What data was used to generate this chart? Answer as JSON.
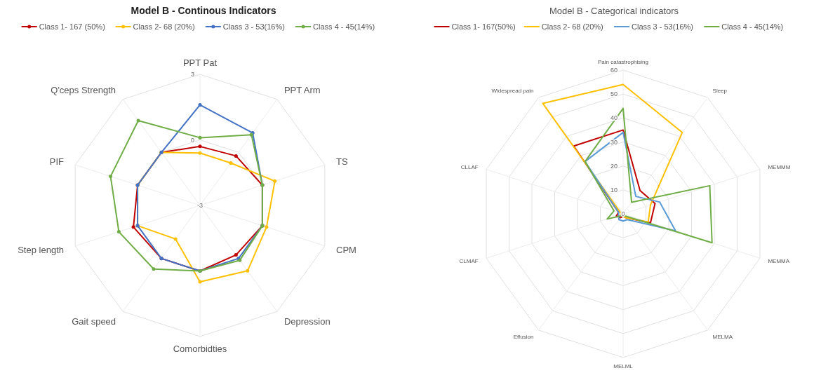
{
  "chart_data": [
    {
      "type": "radar",
      "title": "Model B - Continous Indicators",
      "categories": [
        "PPT Pat",
        "PPT Arm",
        "TS",
        "CPM",
        "Depression",
        "Comorbidties",
        "Gait speed",
        "Step length",
        "PIF",
        "Q'ceps Strength"
      ],
      "ylim": [
        -3,
        3
      ],
      "yticks": [
        -3,
        0,
        3
      ],
      "grid": true,
      "legend": "top",
      "marker": "circle",
      "series": [
        {
          "name": "Class 1- 167 (50%)",
          "color": "#c00000",
          "values": [
            -0.3,
            -0.2,
            0,
            0,
            -0.2,
            0,
            0,
            0.2,
            0,
            0
          ]
        },
        {
          "name": "Class 2- 68 (20%)",
          "color": "#ffc000",
          "values": [
            -0.6,
            -0.6,
            0.6,
            0.2,
            0.7,
            0.5,
            -1.1,
            0,
            0,
            0
          ]
        },
        {
          "name": "Class 3 - 53(16%)",
          "color": "#4472c4",
          "values": [
            1.6,
            1.1,
            0,
            0,
            0,
            0,
            0,
            0,
            0,
            0
          ]
        },
        {
          "name": "Class 4 - 45(14%)",
          "color": "#70ad47",
          "values": [
            0.1,
            1.0,
            0,
            0,
            0.1,
            0,
            0.6,
            0.9,
            1.3,
            1.8
          ]
        }
      ]
    },
    {
      "type": "radar",
      "title": "Model B - Categorical indicators",
      "categories": [
        "Pain catastrophising",
        "Sleep",
        "MEMMM",
        "MEMMA",
        "MELMA",
        "MELML",
        "Effusion",
        "CLMAF",
        "CLLAF",
        "Widespread pain"
      ],
      "ylim": [
        0,
        60
      ],
      "yticks": [
        0,
        10,
        20,
        30,
        40,
        50,
        60
      ],
      "grid": true,
      "legend": "top",
      "marker": "none",
      "series": [
        {
          "name": "Class 1- 167(50%)",
          "color": "#c00000",
          "values": [
            35,
            12,
            14,
            12,
            2,
            1,
            2,
            3,
            2,
            35
          ]
        },
        {
          "name": "Class 2- 68 (20%)",
          "color": "#ffc000",
          "values": [
            54,
            42,
            12,
            11,
            2,
            1,
            1,
            1,
            1,
            57
          ]
        },
        {
          "name": "Class 3 - 53(16%)",
          "color": "#5b9bd5",
          "values": [
            34,
            9,
            16,
            23,
            3,
            3,
            3,
            2,
            2,
            27
          ]
        },
        {
          "name": "Class 4 - 45(14%)",
          "color": "#70ad47",
          "values": [
            44,
            6,
            38,
            39,
            1,
            1,
            1,
            7,
            4,
            27
          ]
        }
      ]
    }
  ]
}
